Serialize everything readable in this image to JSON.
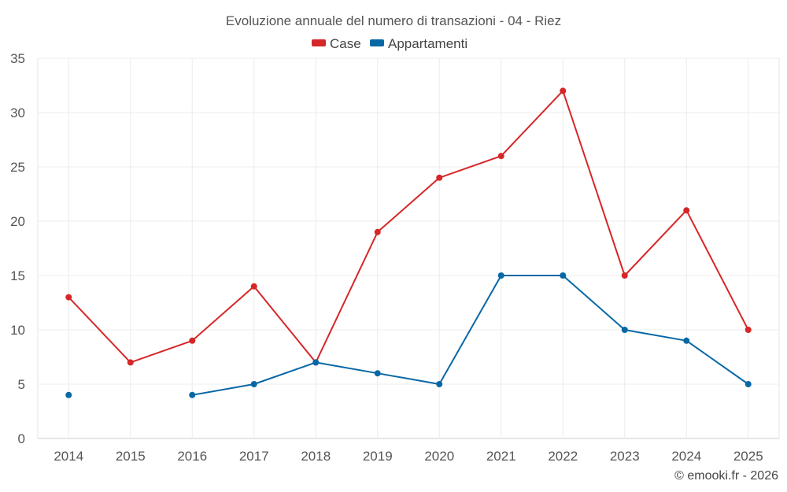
{
  "chart_data": {
    "type": "line",
    "title": "Evoluzione annuale del numero di transazioni - 04 - Riez",
    "categories": [
      "2014",
      "2015",
      "2016",
      "2017",
      "2018",
      "2019",
      "2020",
      "2021",
      "2022",
      "2023",
      "2024",
      "2025"
    ],
    "series": [
      {
        "name": "Case",
        "color": "#d62728",
        "values": [
          13,
          7,
          9,
          14,
          7,
          19,
          24,
          26,
          32,
          15,
          21,
          10
        ]
      },
      {
        "name": "Appartamenti",
        "color": "#0868a5",
        "values": [
          4,
          null,
          4,
          5,
          7,
          6,
          5,
          15,
          15,
          10,
          9,
          5
        ]
      }
    ],
    "ylim": [
      0,
      35
    ],
    "yticks": [
      0,
      5,
      10,
      15,
      20,
      25,
      30,
      35
    ],
    "legend_position": "top-center",
    "grid": true
  },
  "credit": "© emooki.fr - 2026"
}
